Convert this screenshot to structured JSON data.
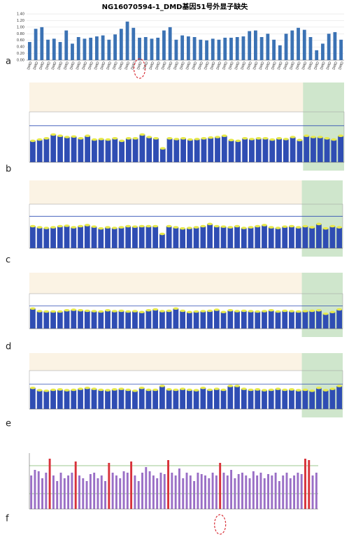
{
  "title": "NG16070594-1_DMD基因51号外显子缺失",
  "chart_data": [
    {
      "type": "bar",
      "panel": "a",
      "color": "#3b72b4",
      "grid": true,
      "highlight": 18,
      "ylim": [
        0,
        1.4
      ],
      "yticks": [
        {
          "value": 0,
          "label": "0.00"
        },
        {
          "value": 0.2,
          "label": "0.20"
        },
        {
          "value": 0.4,
          "label": "0.40"
        },
        {
          "value": 0.6,
          "label": "0.60"
        },
        {
          "value": 0.8,
          "label": "0.80"
        },
        {
          "value": 1.0,
          "label": "1.00"
        },
        {
          "value": 1.2,
          "label": "1.20"
        },
        {
          "value": 1.4,
          "label": "1.40"
        }
      ],
      "categories": [
        "DMD",
        "DMD",
        "DMD",
        "DMD",
        "DMD",
        "DMD",
        "DMD",
        "DMD",
        "DMD",
        "DMD",
        "DMD",
        "DMD",
        "DMD",
        "DMD",
        "DMD",
        "DMD",
        "DMD",
        "DMD",
        "DMD",
        "DMD",
        "DMD",
        "DMD",
        "DMD",
        "DMD",
        "DMD",
        "DMD",
        "DMD",
        "DMD",
        "DMD",
        "DMD",
        "DMD",
        "DMD",
        "DMD",
        "DMD",
        "DMD",
        "DMD",
        "DMD",
        "DMD",
        "DMD",
        "DMD",
        "DMD",
        "DMD",
        "DMD",
        "DMD",
        "DMD",
        "DMD",
        "DMD",
        "DMD",
        "DMD",
        "DMD",
        "DMD",
        "DMD"
      ],
      "values": [
        0.55,
        0.95,
        1.0,
        0.62,
        0.65,
        0.55,
        0.9,
        0.5,
        0.7,
        0.65,
        0.68,
        0.72,
        0.75,
        0.62,
        0.78,
        0.95,
        1.17,
        0.98,
        0.68,
        0.7,
        0.65,
        0.68,
        0.9,
        1.0,
        0.62,
        0.75,
        0.72,
        0.7,
        0.62,
        0.6,
        0.65,
        0.62,
        0.68,
        0.68,
        0.7,
        0.72,
        0.88,
        0.9,
        0.7,
        0.8,
        0.62,
        0.45,
        0.8,
        0.9,
        0.98,
        0.92,
        0.7,
        0.3,
        0.5,
        0.8,
        0.85,
        0.62
      ]
    },
    {
      "type": "qpcr",
      "panel": "b",
      "color": "#2f4db3",
      "cap_color": "#e6e84a",
      "ylim": [
        0,
        2
      ],
      "threshold": 1.45,
      "shaded_from": 40,
      "values": [
        0.85,
        0.9,
        0.95,
        1.1,
        1.05,
        1.0,
        1.02,
        0.95,
        1.05,
        0.9,
        0.92,
        0.9,
        0.95,
        0.85,
        0.95,
        0.95,
        1.1,
        1.0,
        0.95,
        0.55,
        0.95,
        0.92,
        0.95,
        0.9,
        0.92,
        0.95,
        0.98,
        1.0,
        1.05,
        0.88,
        0.85,
        0.95,
        0.92,
        0.95,
        0.95,
        0.9,
        0.95,
        0.92,
        1.0,
        0.88,
        1.05,
        1.0,
        1.0,
        0.95,
        0.9,
        1.05
      ]
    },
    {
      "type": "qpcr",
      "panel": "c",
      "color": "#2f4db3",
      "cap_color": "#e6e84a",
      "ylim": [
        0,
        2
      ],
      "threshold": 1.45,
      "shaded_from": 40,
      "values": [
        1.0,
        0.95,
        0.92,
        0.95,
        1.0,
        1.02,
        0.95,
        1.0,
        1.05,
        0.98,
        0.9,
        0.95,
        0.92,
        0.95,
        1.0,
        0.98,
        1.0,
        1.0,
        1.0,
        0.65,
        1.0,
        0.95,
        0.9,
        0.92,
        0.95,
        1.0,
        1.1,
        1.0,
        0.98,
        0.95,
        1.0,
        0.92,
        0.95,
        1.0,
        1.05,
        0.95,
        0.92,
        0.98,
        1.0,
        0.95,
        1.0,
        0.95,
        1.1,
        0.9,
        1.0,
        0.95
      ]
    },
    {
      "type": "qpcr",
      "panel": "d",
      "color": "#2f4db3",
      "cap_color": "#e6e84a",
      "ylim": [
        0,
        2
      ],
      "threshold": 1.3,
      "shaded_from": 40,
      "values": [
        1.15,
        1.0,
        0.98,
        0.98,
        0.98,
        1.05,
        1.08,
        1.05,
        1.02,
        1.0,
        0.98,
        1.05,
        1.0,
        1.02,
        0.98,
        1.0,
        0.95,
        1.05,
        1.1,
        1.0,
        1.02,
        1.15,
        1.02,
        0.95,
        0.98,
        1.0,
        1.02,
        1.08,
        0.95,
        1.05,
        1.0,
        1.02,
        1.0,
        0.98,
        1.0,
        1.05,
        0.98,
        1.02,
        1.0,
        0.98,
        1.0,
        1.02,
        1.05,
        0.85,
        0.95,
        1.1
      ]
    },
    {
      "type": "qpcr",
      "panel": "e",
      "color": "#2f4db3",
      "cap_color": "#e6e84a",
      "ylim": [
        0,
        2
      ],
      "threshold": 1.3,
      "shaded_from": 40,
      "values": [
        1.1,
        0.98,
        0.95,
        1.0,
        1.02,
        0.98,
        1.0,
        1.05,
        1.1,
        1.05,
        1.0,
        0.98,
        1.02,
        1.05,
        1.0,
        0.95,
        1.1,
        1.0,
        1.0,
        1.2,
        1.02,
        1.0,
        1.05,
        1.0,
        0.98,
        1.1,
        1.0,
        1.05,
        1.0,
        1.2,
        1.2,
        1.05,
        1.0,
        1.02,
        0.98,
        1.0,
        1.05,
        1.0,
        1.02,
        0.98,
        1.0,
        0.95,
        1.1,
        0.98,
        1.05,
        1.2
      ]
    },
    {
      "type": "bar",
      "panel": "f",
      "color": "#9a6fc6",
      "highlight_color": "#d8323a",
      "highlight_indices": [
        5,
        12,
        21,
        27,
        37,
        51,
        74,
        75
      ],
      "highlight": 51,
      "ylim": [
        0,
        2
      ],
      "thresholds": [
        1.55,
        0.55
      ],
      "values": [
        1.2,
        1.4,
        1.35,
        1.1,
        1.3,
        1.8,
        1.2,
        1.0,
        1.3,
        1.1,
        1.2,
        1.3,
        1.7,
        1.2,
        1.1,
        1.0,
        1.25,
        1.3,
        1.1,
        1.2,
        1.0,
        1.65,
        1.3,
        1.2,
        1.1,
        1.35,
        1.3,
        1.7,
        1.2,
        1.0,
        1.3,
        1.5,
        1.35,
        1.2,
        1.1,
        1.3,
        1.25,
        1.75,
        1.3,
        1.2,
        1.45,
        1.1,
        1.3,
        1.2,
        1.0,
        1.3,
        1.25,
        1.2,
        1.1,
        1.3,
        1.2,
        1.65,
        1.3,
        1.2,
        1.4,
        1.1,
        1.25,
        1.3,
        1.2,
        1.1,
        1.35,
        1.2,
        1.3,
        1.1,
        1.25,
        1.2,
        1.3,
        1.0,
        1.2,
        1.3,
        1.1,
        1.2,
        1.3,
        1.25,
        1.8,
        1.75,
        1.2,
        1.3
      ]
    }
  ]
}
